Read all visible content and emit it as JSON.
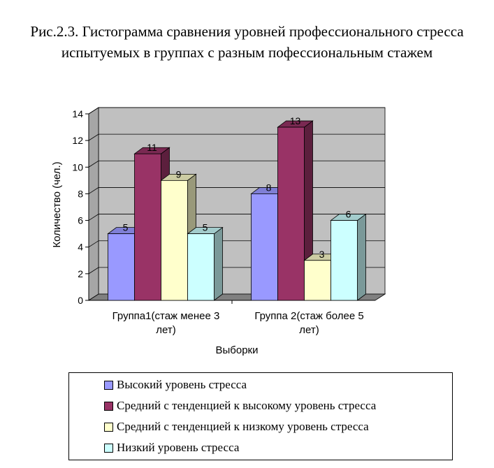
{
  "title": "Рис.2.3. Гистограмма сравнения уровней профессионального стресса испытуемых в группах с разным пофессиональным стажем",
  "chart_data": {
    "type": "bar",
    "style": "3d-clustered-column",
    "categories": [
      [
        "Группа1(стаж менее 3",
        "лет)"
      ],
      [
        "Группа 2(стаж более 5",
        "лет)"
      ]
    ],
    "series": [
      {
        "name": "Высокий уровень стресса",
        "values": [
          5,
          8
        ],
        "color": "#9999FF",
        "side": "#5E5EB0",
        "top": "#7F7FD6"
      },
      {
        "name": "Средний с тенденцией к высокому уровень стресса",
        "values": [
          11,
          13
        ],
        "color": "#993366",
        "side": "#5C1F3D",
        "top": "#7A2952"
      },
      {
        "name": "Средний с тенденцией к низкому уровень стресса",
        "values": [
          9,
          3
        ],
        "color": "#FFFFCC",
        "side": "#99997A",
        "top": "#CCCCA3"
      },
      {
        "name": "Низкий уровень стресса",
        "values": [
          5,
          6
        ],
        "color": "#CCFFFF",
        "side": "#7A9999",
        "top": "#A3CCCC"
      }
    ],
    "xlabel": "Выборки",
    "ylabel": "Количество (чел.)",
    "ylim": [
      0,
      14
    ],
    "yticks": [
      0,
      2,
      4,
      6,
      8,
      10,
      12,
      14
    ],
    "grid": true,
    "wall_color": "#C0C0C0",
    "legend_position": "bottom"
  }
}
